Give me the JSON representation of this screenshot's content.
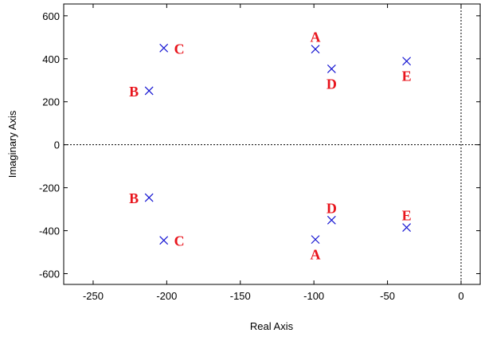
{
  "chart_data": {
    "type": "scatter",
    "title": "",
    "xlabel": "Real Axis",
    "ylabel": "Imaginary Axis",
    "xlim": [
      -270,
      13
    ],
    "ylim": [
      -650,
      655
    ],
    "xticks": [
      -250,
      -200,
      -150,
      -100,
      -50,
      0
    ],
    "yticks": [
      -600,
      -400,
      -200,
      0,
      200,
      400,
      600
    ],
    "grid": false,
    "reference_lines": {
      "x": 0,
      "y": 0,
      "style": "dotted"
    },
    "marker": "x",
    "marker_color": "#1414d2",
    "label_color": "#e8141c",
    "points": [
      {
        "label": "A",
        "x": -99,
        "y": 445,
        "label_pos": "above"
      },
      {
        "label": "A",
        "x": -99,
        "y": -441,
        "label_pos": "below"
      },
      {
        "label": "B",
        "x": -212,
        "y": 251,
        "label_pos": "left"
      },
      {
        "label": "B",
        "x": -212,
        "y": -246,
        "label_pos": "left"
      },
      {
        "label": "C",
        "x": -202,
        "y": 450,
        "label_pos": "right"
      },
      {
        "label": "C",
        "x": -202,
        "y": -445,
        "label_pos": "right"
      },
      {
        "label": "D",
        "x": -88,
        "y": 353,
        "label_pos": "below"
      },
      {
        "label": "D",
        "x": -88,
        "y": -351,
        "label_pos": "above"
      },
      {
        "label": "E",
        "x": -37,
        "y": 389,
        "label_pos": "below"
      },
      {
        "label": "E",
        "x": -37,
        "y": -385,
        "label_pos": "above"
      }
    ]
  }
}
